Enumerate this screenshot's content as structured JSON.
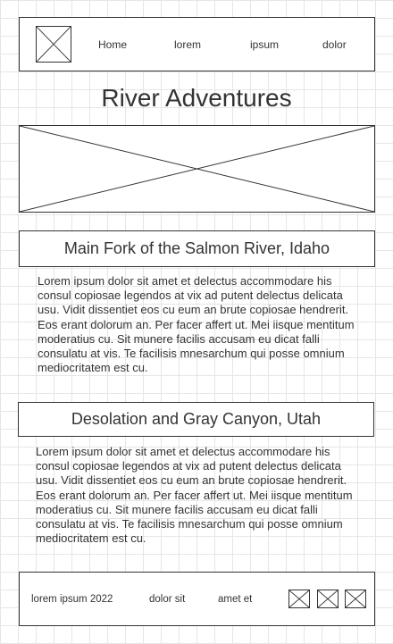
{
  "nav": {
    "items": [
      {
        "label": "Home"
      },
      {
        "label": "lorem"
      },
      {
        "label": "ipsum"
      },
      {
        "label": "dolor"
      }
    ]
  },
  "page": {
    "title": "River Adventures"
  },
  "sections": [
    {
      "heading": "Main Fork of the Salmon River, Idaho",
      "text": "Lorem ipsum dolor sit amet et delectus accommodare his consul copiosae legendos at vix ad putent delectus delicata usu. Vidit dissentiet eos cu eum an brute copiosae hendrerit. Eos erant dolorum an. Per facer affert ut. Mei iisque mentitum moderatius cu. Sit munere facilis accusam eu dicat falli consulatu at vis. Te facilisis mnesarchum qui posse omnium mediocritatem est cu."
    },
    {
      "heading": "Desolation and Gray Canyon, Utah",
      "text": "Lorem ipsum dolor sit amet et delectus accommodare his consul copiosae legendos at vix ad putent delectus delicata usu. Vidit dissentiet eos cu eum an brute copiosae hendrerit. Eos erant dolorum an. Per facer affert ut. Mei iisque mentitum moderatius cu. Sit munere facilis accusam eu dicat falli consulatu at vis. Te facilisis mnesarchum qui posse omnium mediocritatem est cu."
    }
  ],
  "footer": {
    "copyright": "lorem ipsum 2022",
    "links": [
      {
        "label": "dolor sit"
      },
      {
        "label": "amet et"
      }
    ]
  },
  "colors": {
    "line": "#333333",
    "grid": "#e6e6e6",
    "background": "#ffffff"
  },
  "icons": {
    "logo": "image-placeholder-icon",
    "hero": "image-placeholder-icon",
    "social": [
      "social-placeholder-icon",
      "social-placeholder-icon",
      "social-placeholder-icon"
    ]
  }
}
